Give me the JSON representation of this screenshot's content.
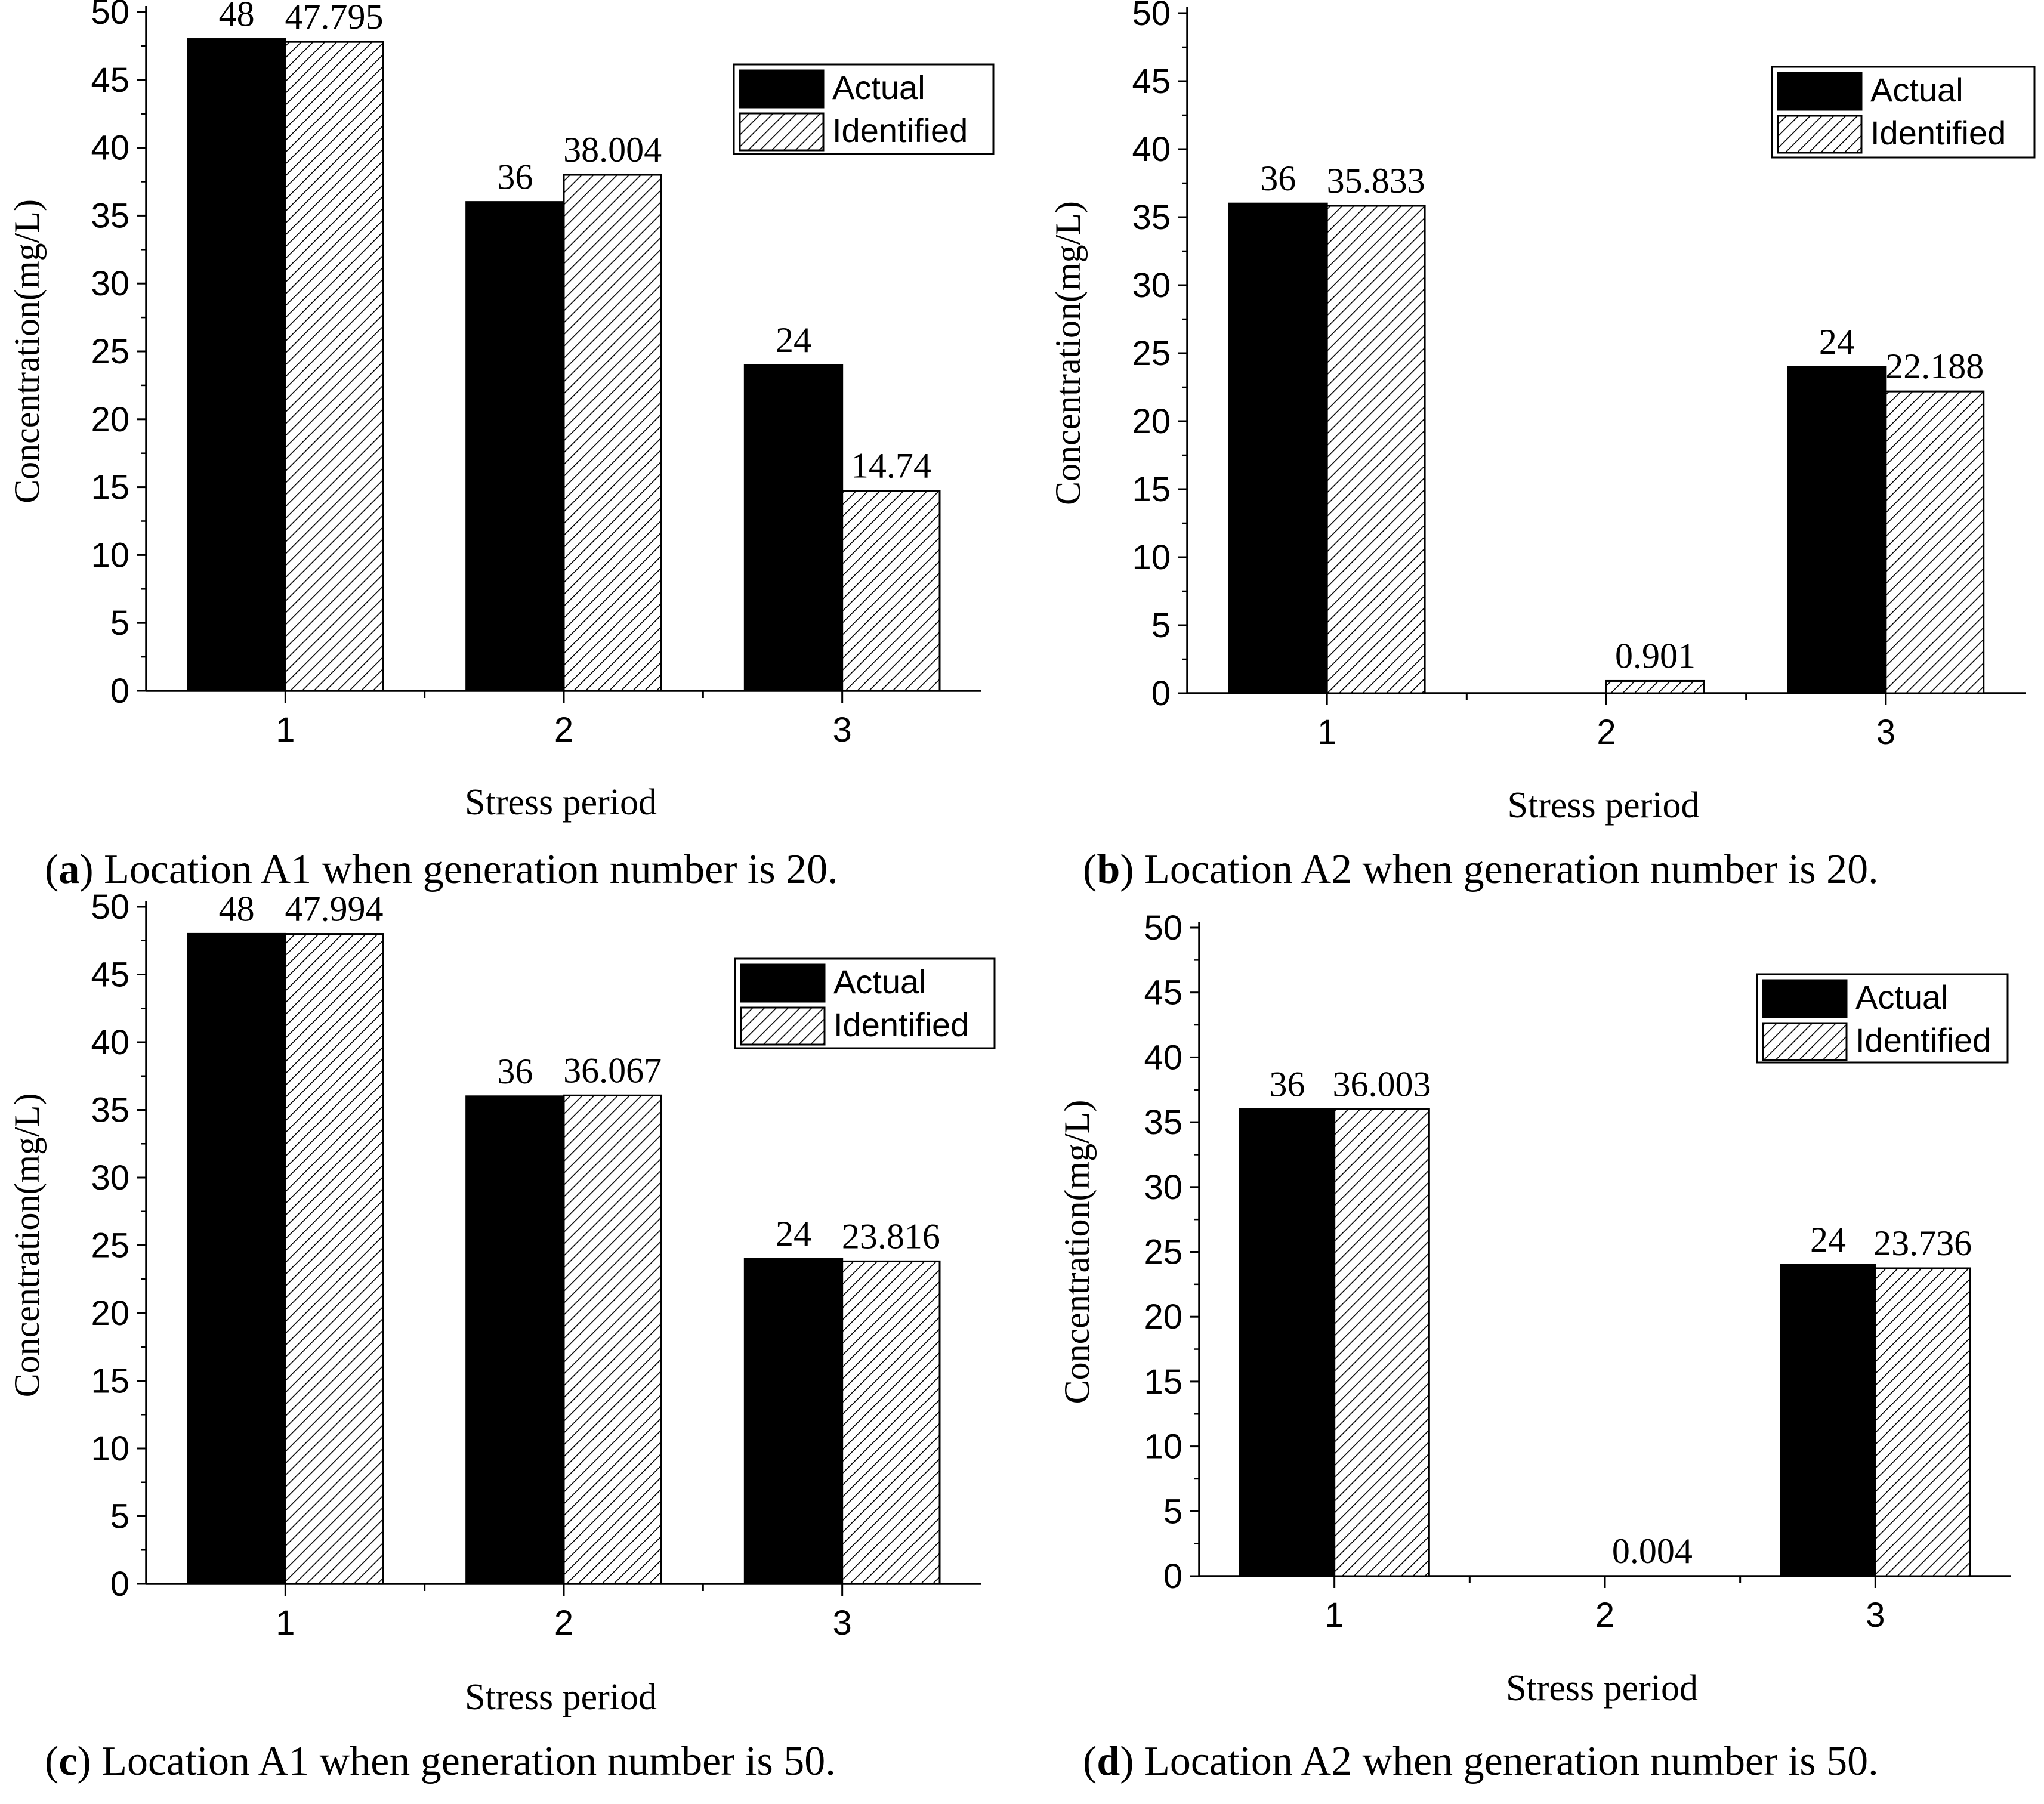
{
  "colors": {
    "actual": "#000000",
    "identified_fill": "#ffffff",
    "hatch": "#000000",
    "axis": "#000000"
  },
  "chart_data": [
    {
      "id": "a",
      "type": "bar",
      "title": "",
      "xlabel": "Stress period",
      "ylabel": "Concentration(mg/L)",
      "ylim": [
        0,
        50
      ],
      "yticks": [
        "0",
        "5",
        "10",
        "15",
        "20",
        "25",
        "30",
        "35",
        "40",
        "45",
        "50"
      ],
      "categories": [
        "1",
        "2",
        "3"
      ],
      "series": [
        {
          "name": "Actual",
          "values": [
            48,
            36,
            24
          ],
          "labels": [
            "48",
            "36",
            "24"
          ]
        },
        {
          "name": "Identified",
          "values": [
            47.795,
            38.004,
            14.74
          ],
          "labels": [
            "47.795",
            "38.004",
            "14.74"
          ]
        }
      ],
      "legend": [
        "Actual",
        "Identified"
      ],
      "legend_position": "top-right",
      "caption": {
        "letter": "a",
        "text": " Location A1 when generation number is 20."
      }
    },
    {
      "id": "b",
      "type": "bar",
      "title": "",
      "xlabel": "Stress period",
      "ylabel": "Concentration(mg/L)",
      "ylim": [
        0,
        50
      ],
      "yticks": [
        "0",
        "5",
        "10",
        "15",
        "20",
        "25",
        "30",
        "35",
        "40",
        "45",
        "50"
      ],
      "categories": [
        "1",
        "2",
        "3"
      ],
      "series": [
        {
          "name": "Actual",
          "values": [
            36,
            0,
            24
          ],
          "labels": [
            "36",
            "",
            "24"
          ]
        },
        {
          "name": "Identified",
          "values": [
            35.833,
            0.901,
            22.188
          ],
          "labels": [
            "35.833",
            "0.901",
            "22.188"
          ]
        }
      ],
      "legend": [
        "Actual",
        "Identified"
      ],
      "legend_position": "top-right",
      "caption": {
        "letter": "b",
        "text": " Location A2 when generation number is 20."
      }
    },
    {
      "id": "c",
      "type": "bar",
      "title": "",
      "xlabel": "Stress period",
      "ylabel": "Concentration(mg/L)",
      "ylim": [
        0,
        50
      ],
      "yticks": [
        "0",
        "5",
        "10",
        "15",
        "20",
        "25",
        "30",
        "35",
        "40",
        "45",
        "50"
      ],
      "categories": [
        "1",
        "2",
        "3"
      ],
      "series": [
        {
          "name": "Actual",
          "values": [
            48,
            36,
            24
          ],
          "labels": [
            "48",
            "36",
            "24"
          ]
        },
        {
          "name": "Identified",
          "values": [
            47.994,
            36.067,
            23.816
          ],
          "labels": [
            "47.994",
            "36.067",
            "23.816"
          ]
        }
      ],
      "legend": [
        "Actual",
        "Identified"
      ],
      "legend_position": "top-right",
      "caption": {
        "letter": "c",
        "text": " Location A1 when generation number is 50."
      }
    },
    {
      "id": "d",
      "type": "bar",
      "title": "",
      "xlabel": "Stress period",
      "ylabel": "Concentration(mg/L)",
      "ylim": [
        0,
        50
      ],
      "yticks": [
        "0",
        "5",
        "10",
        "15",
        "20",
        "25",
        "30",
        "35",
        "40",
        "45",
        "50"
      ],
      "categories": [
        "1",
        "2",
        "3"
      ],
      "series": [
        {
          "name": "Actual",
          "values": [
            36,
            0,
            24
          ],
          "labels": [
            "36",
            "",
            "24"
          ]
        },
        {
          "name": "Identified",
          "values": [
            36.003,
            0.004,
            23.736
          ],
          "labels": [
            "36.003",
            "0.004",
            "23.736"
          ]
        }
      ],
      "legend": [
        "Actual",
        "Identified"
      ],
      "legend_position": "top-right",
      "caption": {
        "letter": "d",
        "text": " Location A2 when generation number is 50."
      }
    }
  ]
}
